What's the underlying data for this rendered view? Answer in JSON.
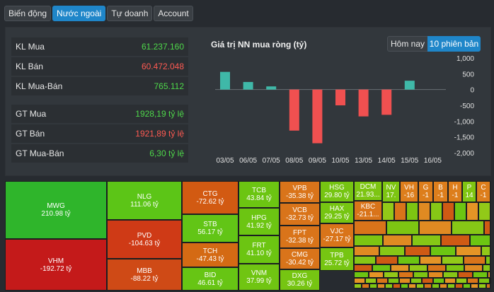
{
  "tabs": [
    {
      "label": "Biến động",
      "active": false
    },
    {
      "label": "Nước ngoài",
      "active": true
    },
    {
      "label": "Tự doanh",
      "active": false
    },
    {
      "label": "Account",
      "active": false
    }
  ],
  "summary": [
    {
      "label": "KL Mua",
      "value": "61.237.160",
      "tone": "green"
    },
    {
      "label": "KL Bán",
      "value": "60.472.048",
      "tone": "red"
    },
    {
      "label": "KL Mua-Bán",
      "value": "765.112",
      "tone": "green"
    },
    {
      "label": "GT Mua",
      "value": "1928,19 tỷ lệ",
      "tone": "green"
    },
    {
      "label": "GT Bán",
      "value": "1921,89 tỷ lệ",
      "tone": "red"
    },
    {
      "label": "GT Mua-Bán",
      "value": "6,30 tỷ lệ",
      "tone": "green"
    }
  ],
  "chart_panel": {
    "title": "Giá trị NN mua ròng (tỷ)",
    "toggle_today": "Hôm nay",
    "toggle_10": "10 phiên bản"
  },
  "chart_data": {
    "type": "bar",
    "title": "Giá trị NN mua ròng (tỷ)",
    "categories": [
      "03/05",
      "06/05",
      "07/05",
      "08/05",
      "09/05",
      "10/05",
      "13/05",
      "14/05",
      "15/05",
      "16/05"
    ],
    "values": [
      560,
      240,
      100,
      -1300,
      -1700,
      -500,
      -850,
      -800,
      280,
      0
    ],
    "yticks": [
      1000,
      500,
      0,
      -500,
      -1000,
      -1500,
      -2000
    ],
    "ytick_labels": [
      "1,000",
      "500",
      "0",
      "-500",
      "-1,000",
      "-1,500",
      "-2,000"
    ],
    "ylim": [
      -2000,
      1000
    ],
    "colors": {
      "positive": "#3fb8a8",
      "negative": "#f05050"
    }
  },
  "treemap": [
    {
      "code": "MWG",
      "val": "210.98 tỷ",
      "color": "#2fb52b"
    },
    {
      "code": "VHM",
      "val": "-192.72 tỷ",
      "color": "#c41a1a"
    },
    {
      "code": "NLG",
      "val": "111.06 tỷ",
      "color": "#5cc517"
    },
    {
      "code": "PVD",
      "val": "-104.63 tỷ",
      "color": "#cf3a16"
    },
    {
      "code": "MBB",
      "val": "-88.22 tỷ",
      "color": "#cf4a16"
    },
    {
      "code": "CTG",
      "val": "-72.62 tỷ",
      "color": "#d25a12"
    },
    {
      "code": "STB",
      "val": "56.17 tỷ",
      "color": "#62c516"
    },
    {
      "code": "TCH",
      "val": "-47.43 tỷ",
      "color": "#d46a14"
    },
    {
      "code": "BID",
      "val": "46.61 tỷ",
      "color": "#67c514"
    },
    {
      "code": "TCB",
      "val": "43.84 tỷ",
      "color": "#6cc512"
    },
    {
      "code": "HPG",
      "val": "41.92 tỷ",
      "color": "#6cc512"
    },
    {
      "code": "FRT",
      "val": "41.10 tỷ",
      "color": "#6cc512"
    },
    {
      "code": "VNM",
      "val": "37.99 tỷ",
      "color": "#70c512"
    },
    {
      "code": "VPB",
      "val": "-35.38 tỷ",
      "color": "#d9741a"
    },
    {
      "code": "VCB",
      "val": "-32.73 tỷ",
      "color": "#d9741a"
    },
    {
      "code": "FPT",
      "val": "-32.38 tỷ",
      "color": "#d9741a"
    },
    {
      "code": "CMG",
      "val": "-30.42 tỷ",
      "color": "#d9741a"
    },
    {
      "code": "DXG",
      "val": "30.26 tỷ",
      "color": "#76c512"
    },
    {
      "code": "HSG",
      "val": "29.80 tỷ",
      "color": "#76c512"
    },
    {
      "code": "HAX",
      "val": "29.25 tỷ",
      "color": "#76c512"
    },
    {
      "code": "VJC",
      "val": "-27.17 tỷ",
      "color": "#d9741a"
    },
    {
      "code": "TPB",
      "val": "25.72 tỷ",
      "color": "#76c512"
    },
    {
      "code": "DCM",
      "val": "21.93...",
      "color": "#7dc512"
    },
    {
      "code": "KBC",
      "val": "-21.1...",
      "color": "#d9741a"
    },
    {
      "code": "NV",
      "val": "17.",
      "color": "#7dc512"
    },
    {
      "code": "VH",
      "val": "-16",
      "color": "#dd7e1c"
    },
    {
      "code": "G",
      "val": "-1",
      "color": "#dd7e1c"
    },
    {
      "code": "B",
      "val": "-1",
      "color": "#dd7e1c"
    },
    {
      "code": "H",
      "val": "-1",
      "color": "#dd7e1c"
    },
    {
      "code": "P",
      "val": "14",
      "color": "#80c512"
    },
    {
      "code": "C",
      "val": "-1",
      "color": "#dd7e1c"
    }
  ]
}
